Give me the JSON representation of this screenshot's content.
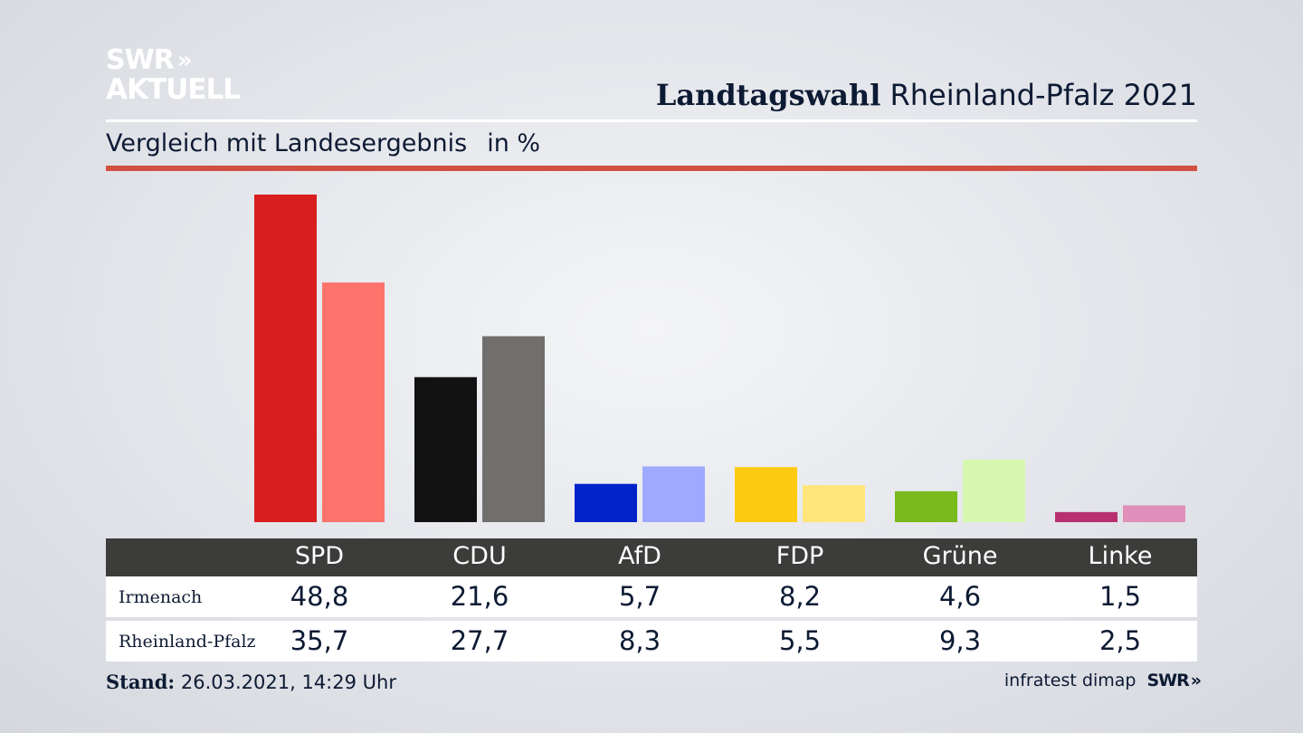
{
  "branding": {
    "logo_line1": "SWR",
    "logo_line2": "AKTUELL",
    "logo_chevrons": "»"
  },
  "header": {
    "title_bold": "Landtagswahl",
    "title_rest": "Rheinland-Pfalz 2021"
  },
  "subtitle": {
    "text": "Vergleich mit Landesergebnis",
    "unit": "in %"
  },
  "chart_data": {
    "type": "bar",
    "categories": [
      "SPD",
      "CDU",
      "AfD",
      "FDP",
      "Grüne",
      "Linke"
    ],
    "series": [
      {
        "name": "Irmenach",
        "values": [
          48.8,
          21.6,
          5.7,
          8.2,
          4.6,
          1.5
        ],
        "labels": [
          "48,8",
          "21,6",
          "5,7",
          "8,2",
          "4,6",
          "1,5"
        ],
        "colors": [
          "#d71f1f",
          "#121212",
          "#0022c8",
          "#fecb10",
          "#79ba1d",
          "#b8306f"
        ]
      },
      {
        "name": "Rheinland-Pfalz",
        "values": [
          35.7,
          27.7,
          8.3,
          5.5,
          9.3,
          2.5
        ],
        "labels": [
          "35,7",
          "27,7",
          "8,3",
          "5,5",
          "9,3",
          "2,5"
        ],
        "colors": [
          "#ff736d",
          "#706f6d",
          "#9eaaff",
          "#ffe57a",
          "#d6f7af",
          "#df8fb9"
        ]
      }
    ],
    "ylim": [
      0,
      48.8
    ],
    "grid": false,
    "legend": "table-below"
  },
  "footer": {
    "stand_label": "Stand:",
    "stand_value": "26.03.2021, 14:29 Uhr",
    "source": "infratest dimap",
    "source_logo": "SWR",
    "source_chevrons": "»"
  }
}
